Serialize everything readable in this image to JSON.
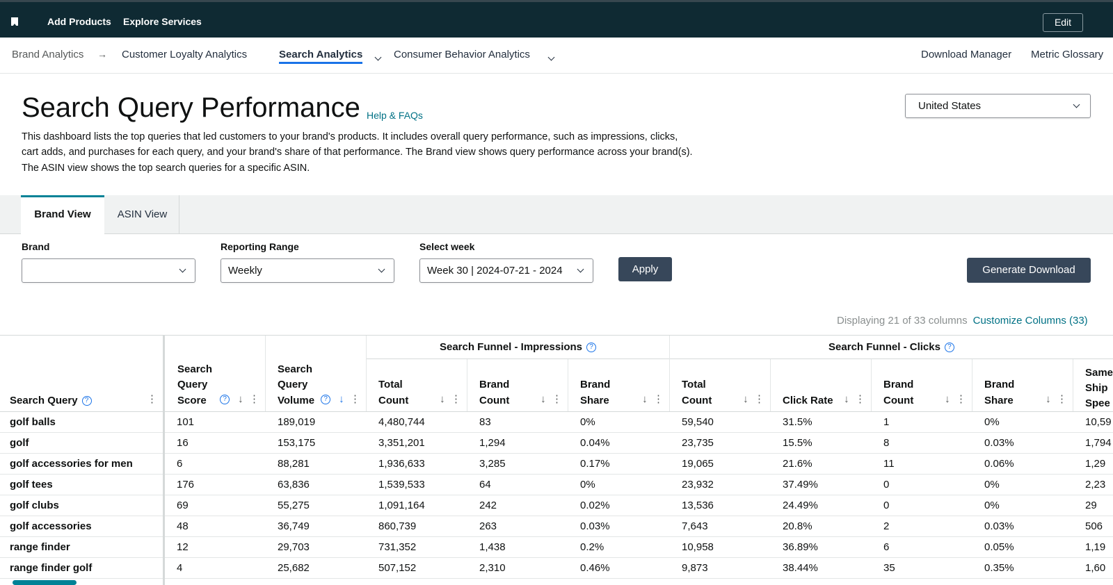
{
  "topbar": {
    "add_products": "Add Products",
    "explore_services": "Explore Services",
    "edit": "Edit"
  },
  "nav": {
    "breadcrumb": "Brand Analytics",
    "items": [
      "Customer Loyalty Analytics",
      "Search Analytics",
      "Consumer Behavior Analytics"
    ],
    "download_manager": "Download Manager",
    "metric_glossary": "Metric Glossary"
  },
  "header": {
    "title": "Search Query Performance",
    "help": "Help & FAQs",
    "description": "This dashboard lists the top queries that led customers to your brand's products. It includes overall query performance, such as impressions, clicks, cart adds, and purchases for each query, and your brand's share of that performance. The Brand view shows query performance across your brand(s). The ASIN view shows the top search queries for a specific ASIN.",
    "country": "United States"
  },
  "tabs": [
    "Brand View",
    "ASIN View"
  ],
  "filters": {
    "brand_label": "Brand",
    "brand_value": "",
    "range_label": "Reporting Range",
    "range_value": "Weekly",
    "week_label": "Select week",
    "week_value": "Week 30 | 2024-07-21 - 2024",
    "apply": "Apply",
    "generate": "Generate Download"
  },
  "columns_info": {
    "displaying": "Displaying 21 of 33 columns",
    "customize": "Customize Columns (33)"
  },
  "table": {
    "groups": {
      "impressions": "Search Funnel - Impressions",
      "clicks": "Search Funnel - Clicks"
    },
    "headers": {
      "query": "Search Query",
      "score": "Search Query Score",
      "volume": "Search Query Volume",
      "imp_total": "Total Count",
      "imp_brand_count": "Brand Count",
      "imp_brand_share": "Brand Share",
      "clk_total": "Total Count",
      "clk_rate": "Click Rate",
      "clk_brand_count": "Brand Count",
      "clk_brand_share": "Brand Share",
      "same_day": "Same Ship Spee"
    },
    "rows": [
      [
        "golf balls",
        "101",
        "189,019",
        "4,480,744",
        "83",
        "0%",
        "59,540",
        "31.5%",
        "1",
        "0%",
        "10,59"
      ],
      [
        "golf",
        "16",
        "153,175",
        "3,351,201",
        "1,294",
        "0.04%",
        "23,735",
        "15.5%",
        "8",
        "0.03%",
        "1,794"
      ],
      [
        "golf accessories for men",
        "6",
        "88,281",
        "1,936,633",
        "3,285",
        "0.17%",
        "19,065",
        "21.6%",
        "11",
        "0.06%",
        "1,29"
      ],
      [
        "golf tees",
        "176",
        "63,836",
        "1,539,533",
        "64",
        "0%",
        "23,932",
        "37.49%",
        "0",
        "0%",
        "2,23"
      ],
      [
        "golf clubs",
        "69",
        "55,275",
        "1,091,164",
        "242",
        "0.02%",
        "13,536",
        "24.49%",
        "0",
        "0%",
        "29"
      ],
      [
        "golf accessories",
        "48",
        "36,749",
        "860,739",
        "263",
        "0.03%",
        "7,643",
        "20.8%",
        "2",
        "0.03%",
        "506"
      ],
      [
        "range finder",
        "12",
        "29,703",
        "731,352",
        "1,438",
        "0.2%",
        "10,958",
        "36.89%",
        "6",
        "0.05%",
        "1,19"
      ],
      [
        "range finder golf",
        "4",
        "25,682",
        "507,152",
        "2,310",
        "0.46%",
        "9,873",
        "38.44%",
        "35",
        "0.35%",
        "1,60"
      ]
    ]
  }
}
